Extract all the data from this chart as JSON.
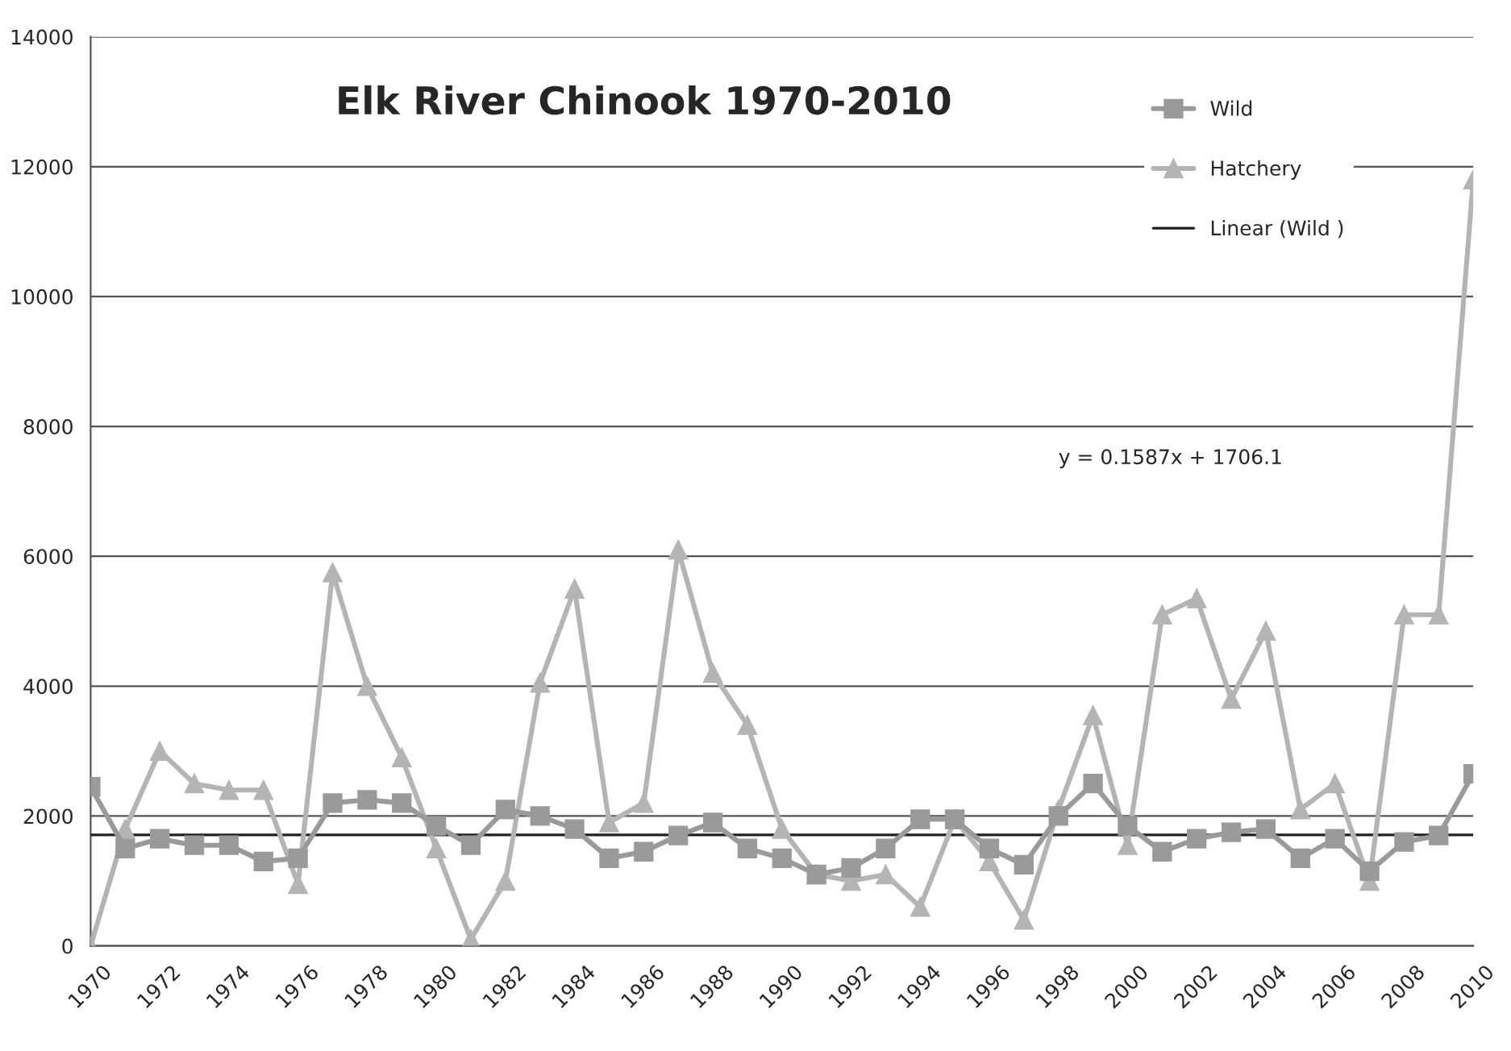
{
  "chart_data": {
    "type": "line",
    "title": "Elk River Chinook 1970-2010",
    "x": [
      1970,
      1971,
      1972,
      1973,
      1974,
      1975,
      1976,
      1977,
      1978,
      1979,
      1980,
      1981,
      1982,
      1983,
      1984,
      1985,
      1986,
      1987,
      1988,
      1989,
      1990,
      1991,
      1992,
      1993,
      1994,
      1995,
      1996,
      1997,
      1998,
      1999,
      2000,
      2001,
      2002,
      2003,
      2004,
      2005,
      2006,
      2007,
      2008,
      2009,
      2010
    ],
    "series": [
      {
        "name": "Wild",
        "color": "#9a9a9a",
        "marker": "square",
        "values": [
          2450,
          1500,
          1650,
          1550,
          1550,
          1300,
          1350,
          2200,
          2250,
          2200,
          1850,
          1550,
          2100,
          2000,
          1800,
          1350,
          1450,
          1700,
          1900,
          1500,
          1350,
          1100,
          1200,
          1500,
          1950,
          1950,
          1500,
          1250,
          2000,
          2500,
          1850,
          1450,
          1650,
          1750,
          1800,
          1350,
          1650,
          1150,
          1600,
          1700,
          2650
        ]
      },
      {
        "name": "Hatchery",
        "color": "#b4b4b4",
        "marker": "triangle",
        "values": [
          0,
          1800,
          3000,
          2500,
          2400,
          2400,
          950,
          5750,
          4000,
          2900,
          1500,
          100,
          1000,
          4050,
          5500,
          1900,
          2200,
          6100,
          4200,
          3400,
          1800,
          1100,
          1000,
          1100,
          600,
          1950,
          1300,
          400,
          2100,
          3550,
          1550,
          5100,
          5350,
          3800,
          4850,
          2100,
          2500,
          1000,
          5100,
          5100,
          11800
        ]
      },
      {
        "name": "Linear (Wild )",
        "color": "#202020",
        "marker": "none",
        "x": [
          1970,
          2010
        ],
        "values": [
          1710,
          1710
        ]
      }
    ],
    "xlim": [
      1970,
      2010
    ],
    "xticks": [
      1970,
      1972,
      1974,
      1976,
      1978,
      1980,
      1982,
      1984,
      1986,
      1988,
      1990,
      1992,
      1994,
      1996,
      1998,
      2000,
      2002,
      2004,
      2006,
      2008,
      2010
    ],
    "ylim": [
      0,
      14000
    ],
    "yticks": [
      0,
      2000,
      4000,
      6000,
      8000,
      10000,
      12000,
      14000
    ],
    "grid": "y",
    "legend": "top right",
    "line_style": "solid",
    "annotations": [
      "y = 0.1587x + 1706.1"
    ]
  }
}
